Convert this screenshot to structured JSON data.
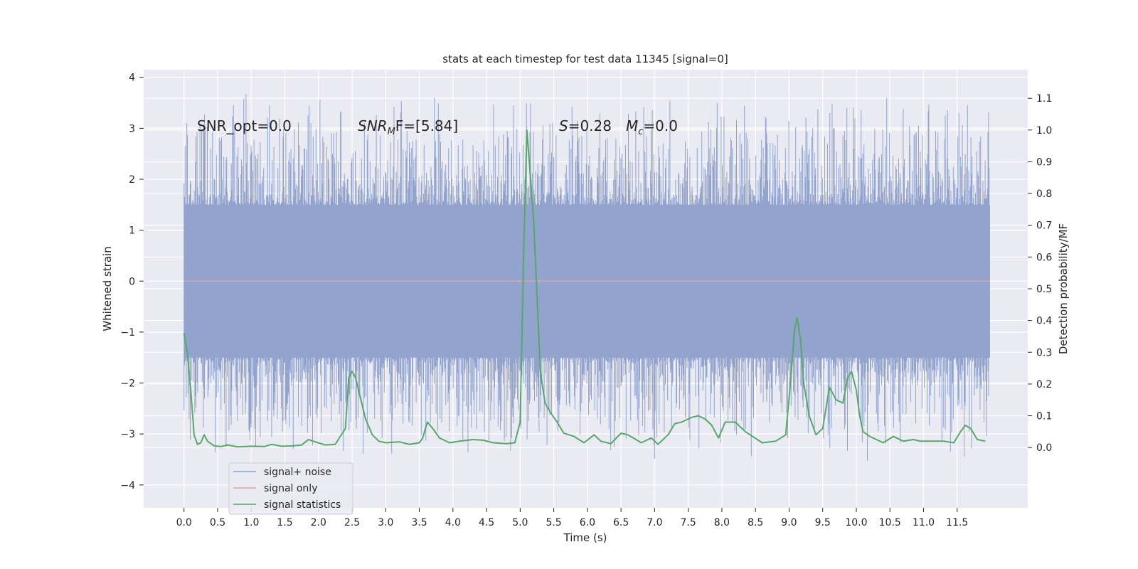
{
  "chart_data": {
    "type": "line",
    "title": "stats at each timestep for test data 11345 [signal=0]",
    "xlabel": "Time (s)",
    "ylabel": "Whitened strain",
    "y2label": "Detection probability/MF",
    "xlim": [
      -0.6,
      12.55
    ],
    "ylim": [
      -4.45,
      4.15
    ],
    "y2lim": [
      -0.19,
      1.19
    ],
    "x_ticks": [
      0.0,
      0.5,
      1.0,
      1.5,
      2.0,
      2.5,
      3.0,
      3.5,
      4.0,
      4.5,
      5.0,
      5.5,
      6.0,
      6.5,
      7.0,
      7.5,
      8.0,
      8.5,
      9.0,
      9.5,
      10.0,
      10.5,
      11.0,
      11.5
    ],
    "x_tick_labels": [
      "0.0",
      "0.5",
      "1.0",
      "1.5",
      "2.0",
      "2.5",
      "3.0",
      "3.5",
      "4.0",
      "4.5",
      "5.0",
      "5.5",
      "6.0",
      "6.5",
      "7.0",
      "7.5",
      "8.0",
      "8.5",
      "9.0",
      "9.5",
      "10.0",
      "10.5",
      "11.0",
      "11.5"
    ],
    "y_ticks": [
      -4,
      -3,
      -2,
      -1,
      0,
      1,
      2,
      3,
      4
    ],
    "y_tick_labels": [
      "−4",
      "−3",
      "−2",
      "−1",
      "0",
      "1",
      "2",
      "3",
      "4"
    ],
    "y2_ticks": [
      0.0,
      0.1,
      0.2,
      0.3,
      0.4,
      0.5,
      0.6,
      0.7,
      0.8,
      0.9,
      1.0,
      1.1
    ],
    "y2_tick_labels": [
      "0.0",
      "0.1",
      "0.2",
      "0.3",
      "0.4",
      "0.5",
      "0.6",
      "0.7",
      "0.8",
      "0.9",
      "1.0",
      "1.1"
    ],
    "grid": true,
    "legend_position": "lower-left",
    "annotations": {
      "snr_opt": "SNR_opt=0.0",
      "snr_mf_main": "SNR",
      "snr_mf_sub": "M",
      "snr_mf_rest": "F=[5.84]",
      "s_label": "S",
      "s_value": "=0.28",
      "mc_main": "M",
      "mc_sub": "c",
      "mc_value": "=0.0"
    },
    "series": [
      {
        "name": "signal+ noise",
        "color": "#8da0cb",
        "axis": "left",
        "style": "noise band",
        "x_range": [
          0.0,
          11.99
        ],
        "typical_range": [
          -1.5,
          1.5
        ],
        "peak_range": [
          -3.6,
          3.8
        ]
      },
      {
        "name": "signal only",
        "color": "#e8a48c",
        "axis": "left",
        "x": [
          0.0,
          11.99
        ],
        "y": [
          0.0,
          0.0
        ]
      },
      {
        "name": "signal statistics",
        "color": "#55a868",
        "axis": "right",
        "x": [
          0.0,
          0.05,
          0.1,
          0.15,
          0.2,
          0.25,
          0.3,
          0.35,
          0.45,
          0.55,
          0.65,
          0.8,
          1.0,
          1.2,
          1.3,
          1.45,
          1.6,
          1.75,
          1.85,
          1.95,
          2.1,
          2.25,
          2.4,
          2.45,
          2.5,
          2.55,
          2.62,
          2.7,
          2.8,
          2.9,
          3.0,
          3.2,
          3.35,
          3.5,
          3.55,
          3.62,
          3.7,
          3.8,
          3.95,
          4.1,
          4.3,
          4.45,
          4.6,
          4.8,
          4.92,
          5.0,
          5.05,
          5.1,
          5.2,
          5.3,
          5.37,
          5.45,
          5.55,
          5.65,
          5.8,
          5.95,
          6.1,
          6.2,
          6.35,
          6.5,
          6.6,
          6.7,
          6.8,
          6.95,
          7.05,
          7.2,
          7.3,
          7.4,
          7.55,
          7.65,
          7.75,
          7.85,
          7.95,
          8.05,
          8.2,
          8.35,
          8.6,
          8.8,
          8.95,
          9.02,
          9.08,
          9.12,
          9.17,
          9.22,
          9.3,
          9.4,
          9.5,
          9.6,
          9.7,
          9.8,
          9.87,
          9.93,
          10.0,
          10.05,
          10.1,
          10.2,
          10.4,
          10.55,
          10.7,
          10.85,
          10.95,
          11.1,
          11.3,
          11.45,
          11.55,
          11.62,
          11.7,
          11.8,
          11.92
        ],
        "y": [
          0.36,
          0.3,
          0.18,
          0.04,
          0.01,
          0.015,
          0.04,
          0.02,
          0.005,
          0.003,
          0.008,
          0.002,
          0.004,
          0.003,
          0.01,
          0.004,
          0.005,
          0.008,
          0.025,
          0.018,
          0.008,
          0.01,
          0.06,
          0.22,
          0.24,
          0.22,
          0.16,
          0.09,
          0.04,
          0.02,
          0.015,
          0.018,
          0.01,
          0.015,
          0.03,
          0.08,
          0.06,
          0.03,
          0.015,
          0.02,
          0.025,
          0.023,
          0.015,
          0.012,
          0.015,
          0.08,
          0.6,
          1.0,
          0.72,
          0.24,
          0.14,
          0.11,
          0.08,
          0.045,
          0.035,
          0.015,
          0.04,
          0.02,
          0.012,
          0.045,
          0.04,
          0.028,
          0.015,
          0.03,
          0.01,
          0.04,
          0.075,
          0.08,
          0.095,
          0.1,
          0.09,
          0.07,
          0.03,
          0.08,
          0.08,
          0.05,
          0.015,
          0.02,
          0.04,
          0.2,
          0.37,
          0.41,
          0.34,
          0.2,
          0.1,
          0.04,
          0.06,
          0.19,
          0.15,
          0.14,
          0.22,
          0.24,
          0.18,
          0.1,
          0.05,
          0.035,
          0.015,
          0.035,
          0.02,
          0.025,
          0.02,
          0.02,
          0.02,
          0.015,
          0.05,
          0.07,
          0.06,
          0.025,
          0.02
        ]
      }
    ]
  }
}
